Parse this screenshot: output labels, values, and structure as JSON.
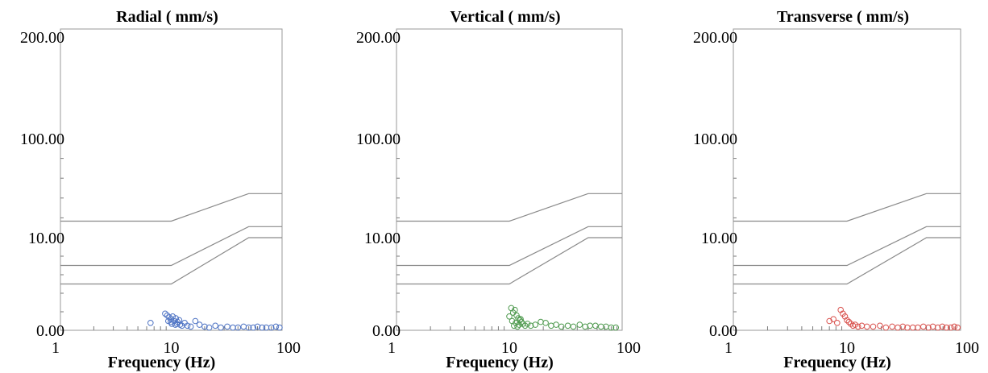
{
  "chart_data": [
    {
      "type": "scatter",
      "title": "Radial ( mm/s)",
      "xlabel": "Frequency (Hz)",
      "ylabel": "",
      "xscale": "log",
      "xlim": [
        1,
        100
      ],
      "ylim": [
        0,
        200
      ],
      "x_ticks": [
        "1",
        "10",
        "100"
      ],
      "y_ticks": [
        "0.00",
        "10.00",
        "100.00",
        "200.00"
      ],
      "color": "#4f74c4",
      "grid": false,
      "limit_curves": [
        {
          "x": [
            1,
            10,
            50,
            100
          ],
          "y": [
            25,
            25,
            50,
            50
          ]
        },
        {
          "x": [
            1,
            10,
            50,
            100
          ],
          "y": [
            7,
            7,
            20,
            20
          ]
        },
        {
          "x": [
            1,
            10,
            50,
            100
          ],
          "y": [
            5,
            5,
            10,
            10
          ]
        }
      ],
      "points": {
        "x": [
          6.5,
          8.8,
          9.2,
          9.6,
          10.0,
          10.3,
          10.6,
          11.0,
          11.4,
          11.8,
          9.4,
          10.1,
          10.9,
          12.5,
          13.2,
          14.0,
          15.0,
          16.5,
          18.0,
          20.0,
          22.0,
          25.0,
          28.0,
          32.0,
          36.0,
          40.0,
          45.0,
          50.0,
          55.0,
          60.0,
          66.0,
          72.0,
          80.0,
          88.0,
          95.0,
          9.9,
          11.2,
          12.0
        ],
        "y": [
          0.8,
          1.8,
          1.6,
          1.4,
          1.2,
          1.5,
          1.0,
          1.3,
          0.9,
          1.1,
          1.0,
          0.7,
          0.6,
          0.5,
          0.8,
          0.5,
          0.4,
          1.0,
          0.6,
          0.4,
          0.3,
          0.5,
          0.3,
          0.4,
          0.3,
          0.3,
          0.4,
          0.3,
          0.3,
          0.4,
          0.3,
          0.3,
          0.3,
          0.4,
          0.3,
          0.9,
          0.7,
          0.6
        ]
      }
    },
    {
      "type": "scatter",
      "title": "Vertical ( mm/s)",
      "xlabel": "Frequency (Hz)",
      "ylabel": "",
      "xscale": "log",
      "xlim": [
        1,
        100
      ],
      "ylim": [
        0,
        200
      ],
      "x_ticks": [
        "1",
        "10",
        "100"
      ],
      "y_ticks": [
        "0.00",
        "10.00",
        "100.00",
        "200.00"
      ],
      "color": "#4f9a4f",
      "grid": false,
      "limit_curves": [
        {
          "x": [
            1,
            10,
            50,
            100
          ],
          "y": [
            25,
            25,
            50,
            50
          ]
        },
        {
          "x": [
            1,
            10,
            50,
            100
          ],
          "y": [
            7,
            7,
            20,
            20
          ]
        },
        {
          "x": [
            1,
            10,
            50,
            100
          ],
          "y": [
            5,
            5,
            10,
            10
          ]
        }
      ],
      "points": {
        "x": [
          10.0,
          10.4,
          10.8,
          11.2,
          11.6,
          12.0,
          12.4,
          12.8,
          13.2,
          10.6,
          11.4,
          12.2,
          13.8,
          14.5,
          11.0,
          11.8,
          12.6,
          15.5,
          17.0,
          19.0,
          21.0,
          23.5,
          26.0,
          29.0,
          33.0,
          37.0,
          42.0,
          47.0,
          52.0,
          58.0,
          65.0,
          72.0,
          80.0,
          88.0
        ],
        "y": [
          1.5,
          2.4,
          1.9,
          2.2,
          1.6,
          1.3,
          1.1,
          0.9,
          0.7,
          1.0,
          0.8,
          0.6,
          0.5,
          0.7,
          0.5,
          0.4,
          1.2,
          0.5,
          0.6,
          0.9,
          0.8,
          0.5,
          0.6,
          0.4,
          0.5,
          0.4,
          0.6,
          0.4,
          0.5,
          0.5,
          0.4,
          0.4,
          0.3,
          0.3
        ]
      }
    },
    {
      "type": "scatter",
      "title": "Transverse ( mm/s)",
      "xlabel": "Frequency (Hz)",
      "ylabel": "",
      "xscale": "log",
      "xlim": [
        1,
        100
      ],
      "ylim": [
        0,
        200
      ],
      "x_ticks": [
        "1",
        "10",
        "100"
      ],
      "y_ticks": [
        "0.00",
        "10.00",
        "100.00",
        "200.00"
      ],
      "color": "#d9534f",
      "grid": false,
      "limit_curves": [
        {
          "x": [
            1,
            10,
            50,
            100
          ],
          "y": [
            25,
            25,
            50,
            50
          ]
        },
        {
          "x": [
            1,
            10,
            50,
            100
          ],
          "y": [
            7,
            7,
            20,
            20
          ]
        },
        {
          "x": [
            1,
            10,
            50,
            100
          ],
          "y": [
            5,
            5,
            10,
            10
          ]
        }
      ],
      "points": {
        "x": [
          7.0,
          7.6,
          8.2,
          8.8,
          9.2,
          9.6,
          10.0,
          10.4,
          10.8,
          11.3,
          11.8,
          12.5,
          13.5,
          15.0,
          17.0,
          19.5,
          22.0,
          25.0,
          28.0,
          31.0,
          34.0,
          38.0,
          42.0,
          47.0,
          52.0,
          57.0,
          63.0,
          69.0,
          75.0,
          82.0,
          88.0,
          94.0
        ],
        "y": [
          1.0,
          1.2,
          0.8,
          2.2,
          1.8,
          1.5,
          1.1,
          0.9,
          0.7,
          0.5,
          0.6,
          0.4,
          0.5,
          0.4,
          0.4,
          0.5,
          0.3,
          0.4,
          0.3,
          0.4,
          0.3,
          0.3,
          0.3,
          0.4,
          0.3,
          0.4,
          0.3,
          0.4,
          0.3,
          0.3,
          0.4,
          0.3
        ]
      }
    }
  ]
}
